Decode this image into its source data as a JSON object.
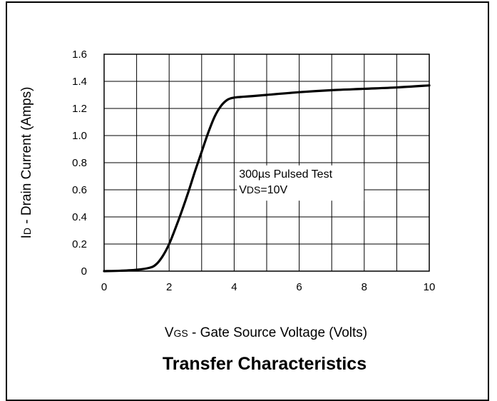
{
  "chart_data": {
    "type": "line",
    "title": "Transfer Characteristics",
    "xlabel": {
      "symbol": "V",
      "subscript": "GS",
      "text": " - Gate Source Voltage (Volts)"
    },
    "ylabel": {
      "symbol": "I",
      "subscript": "D",
      "text": " - Drain Current (Amps)"
    },
    "xlim": [
      0,
      10
    ],
    "ylim": [
      0,
      1.6
    ],
    "x_ticks": [
      0,
      2,
      4,
      6,
      8,
      10
    ],
    "x_tick_labels": [
      "0",
      "2",
      "4",
      "6",
      "8",
      "10"
    ],
    "y_ticks": [
      0,
      0.2,
      0.4,
      0.6,
      0.8,
      1.0,
      1.2,
      1.4,
      1.6
    ],
    "y_tick_labels": [
      "0",
      "0.2",
      "0.4",
      "0.6",
      "0.8",
      "1.0",
      "1.2",
      "1.4",
      "1.6"
    ],
    "x_grid_step": 1,
    "y_grid_step": 0.2,
    "grid": true,
    "annotations": {
      "line1": "300µs Pulsed Test",
      "line2_symbol": "V",
      "line2_subscript": "DS",
      "line2_rest": "=10V"
    },
    "series": [
      {
        "x": [
          0,
          0.5,
          1.0,
          1.4,
          1.6,
          1.8,
          2.0,
          2.2,
          2.4,
          2.6,
          2.8,
          3.0,
          3.2,
          3.4,
          3.6,
          3.8,
          4.0,
          4.2,
          4.5,
          5.0,
          6.0,
          7.0,
          8.0,
          9.0,
          10.0
        ],
        "y": [
          0,
          0.003,
          0.01,
          0.025,
          0.05,
          0.11,
          0.2,
          0.32,
          0.45,
          0.59,
          0.74,
          0.88,
          1.02,
          1.14,
          1.22,
          1.265,
          1.28,
          1.285,
          1.29,
          1.3,
          1.32,
          1.335,
          1.345,
          1.355,
          1.37
        ]
      }
    ]
  }
}
